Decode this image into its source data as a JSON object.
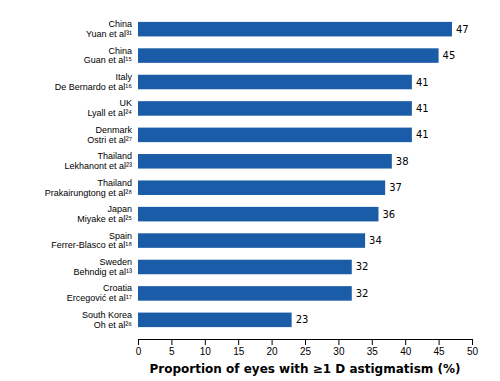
{
  "chart_data": {
    "type": "bar",
    "orientation": "horizontal",
    "categories": [
      "South Korea\nOh et al²⁶",
      "Croatia\nErcegović et al¹⁷",
      "Sweden\nBehndig et al¹³",
      "Spain\nFerrer-Blasco et al¹⁸",
      "Japan\nMiyake et al²⁵",
      "Thailand\nPrakairungtong et al²⁸",
      "Thailand\nLekhanont et al²³",
      "Denmark\nOstri et al²⁷",
      "UK\nLyall et al²⁴",
      "Italy\nDe Bernardo et al¹⁶",
      "China\nGuan et al¹⁵",
      "China\nYuan et al³¹"
    ],
    "values": [
      23,
      32,
      32,
      34,
      36,
      37,
      38,
      41,
      41,
      41,
      45,
      47
    ],
    "color": "#1a5ca8",
    "xlabel": "Proportion of eyes with ≥1 D astigmatism (%)",
    "xlim": [
      0,
      50
    ],
    "xticks": [
      0,
      5,
      10,
      15,
      20,
      25,
      30,
      35,
      40,
      45,
      50
    ],
    "data_labels": true
  }
}
